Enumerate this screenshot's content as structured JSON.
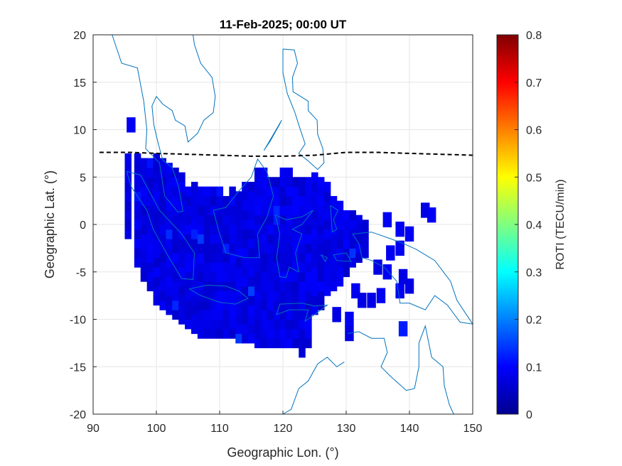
{
  "chart_data": {
    "type": "heatmap",
    "title": "11-Feb-2025; 00:00 UT",
    "xlabel": "Geographic Lon. (°)",
    "ylabel": "Geographic Lat. (°)",
    "xlim": [
      90,
      150
    ],
    "ylim": [
      -20,
      20
    ],
    "xticks": [
      90,
      100,
      110,
      120,
      130,
      140,
      150
    ],
    "yticks": [
      20,
      15,
      10,
      5,
      0,
      -5,
      -10,
      -15,
      -20
    ],
    "grid": true,
    "colorbar": {
      "label": "ROTI (TECU/min)",
      "limits": [
        0,
        0.8
      ],
      "ticks": [
        0.8,
        0.7,
        0.6,
        0.5,
        0.4,
        0.3,
        0.2,
        0.1,
        0
      ],
      "colormap": "jet"
    },
    "cell_size_deg": [
      1.0,
      1.0
    ],
    "roti_typical": 0.08,
    "roti_range": [
      0.05,
      0.16
    ],
    "dense_region": {
      "lon_range": [
        95.5,
        127
      ],
      "lat_range": [
        -13,
        7
      ],
      "value": 0.08
    },
    "isolated_cells": [
      {
        "lon": 96,
        "lat": 10.5,
        "value": 0.09
      },
      {
        "lon": 142.5,
        "lat": 1.5,
        "value": 0.08
      },
      {
        "lon": 143.5,
        "lat": 1,
        "value": 0.09
      },
      {
        "lon": 136.5,
        "lat": 0.5,
        "value": 0.09
      },
      {
        "lon": 138.5,
        "lat": -0.5,
        "value": 0.09
      },
      {
        "lon": 140,
        "lat": -1,
        "value": 0.09
      },
      {
        "lon": 137,
        "lat": -3,
        "value": 0.09
      },
      {
        "lon": 138.5,
        "lat": -2.5,
        "value": 0.09
      },
      {
        "lon": 135,
        "lat": -4.5,
        "value": 0.08
      },
      {
        "lon": 136.5,
        "lat": -5,
        "value": 0.09
      },
      {
        "lon": 139,
        "lat": -5.5,
        "value": 0.08
      },
      {
        "lon": 138.5,
        "lat": -7,
        "value": 0.09
      },
      {
        "lon": 135.5,
        "lat": -7.5,
        "value": 0.09
      },
      {
        "lon": 134,
        "lat": -8,
        "value": 0.08
      },
      {
        "lon": 140,
        "lat": -6.5,
        "value": 0.08
      },
      {
        "lon": 139,
        "lat": -11,
        "value": 0.12
      },
      {
        "lon": 131.5,
        "lat": -7,
        "value": 0.09
      },
      {
        "lon": 130.5,
        "lat": -10,
        "value": 0.09
      },
      {
        "lon": 130.5,
        "lat": -11.5,
        "value": 0.08
      },
      {
        "lon": 128.5,
        "lat": -9.5,
        "value": 0.08
      },
      {
        "lon": 132.5,
        "lat": -8,
        "value": 0.08
      }
    ],
    "dip_equator": {
      "style": "dashed",
      "color": "#000000",
      "lon": [
        91,
        96,
        100,
        105,
        110,
        115,
        120,
        125,
        130,
        135,
        140,
        145,
        150
      ],
      "lat": [
        7.6,
        7.6,
        7.5,
        7.4,
        7.3,
        7.2,
        7.2,
        7.3,
        7.6,
        7.6,
        7.5,
        7.4,
        7.3
      ]
    },
    "coastline_color": "#0072BD"
  }
}
